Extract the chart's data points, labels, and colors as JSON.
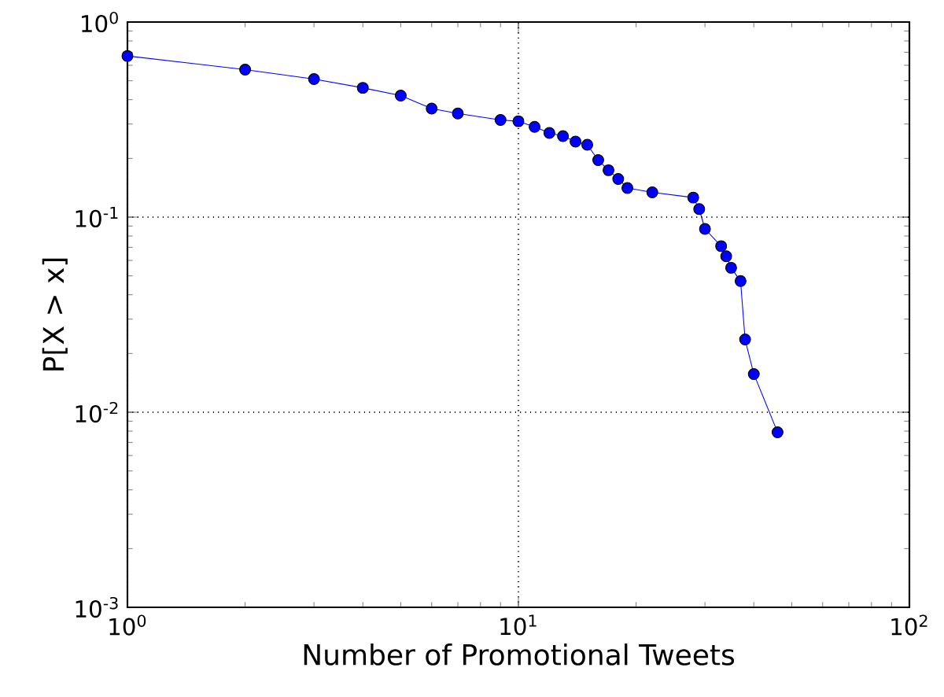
{
  "chart_data": {
    "type": "line",
    "xlabel": "Number of Promotional Tweets",
    "ylabel": "P[X > x]",
    "log": "xy",
    "grid": true,
    "marker": "circle",
    "line_style": "solid",
    "xlim": [
      1,
      100
    ],
    "ylim": [
      0.001,
      1
    ],
    "xticks": [
      {
        "value": 1,
        "label": "10$^{0}$"
      },
      {
        "value": 10,
        "label": "10$^{1}$"
      },
      {
        "value": 100,
        "label": "10$^{2}$"
      }
    ],
    "yticks": [
      {
        "value": 0.001,
        "label": "10$^{-3}$"
      },
      {
        "value": 0.01,
        "label": "10$^{-2}$"
      },
      {
        "value": 0.1,
        "label": "10$^{-1}$"
      },
      {
        "value": 1,
        "label": "10$^{0}$"
      }
    ],
    "series": [
      {
        "color": "#0000ff",
        "x": [
          1,
          2,
          3,
          4,
          5,
          6,
          7,
          9,
          10,
          11,
          12,
          13,
          14,
          15,
          16,
          17,
          18,
          19,
          22,
          28,
          29,
          30,
          33,
          34,
          35,
          37,
          38,
          40,
          46
        ],
        "values": [
          0.67,
          0.57,
          0.51,
          0.46,
          0.42,
          0.36,
          0.34,
          0.315,
          0.31,
          0.29,
          0.27,
          0.26,
          0.244,
          0.235,
          0.196,
          0.174,
          0.157,
          0.141,
          0.134,
          0.126,
          0.11,
          0.087,
          0.071,
          0.063,
          0.055,
          0.047,
          0.0236,
          0.0157,
          0.0079
        ]
      }
    ]
  }
}
